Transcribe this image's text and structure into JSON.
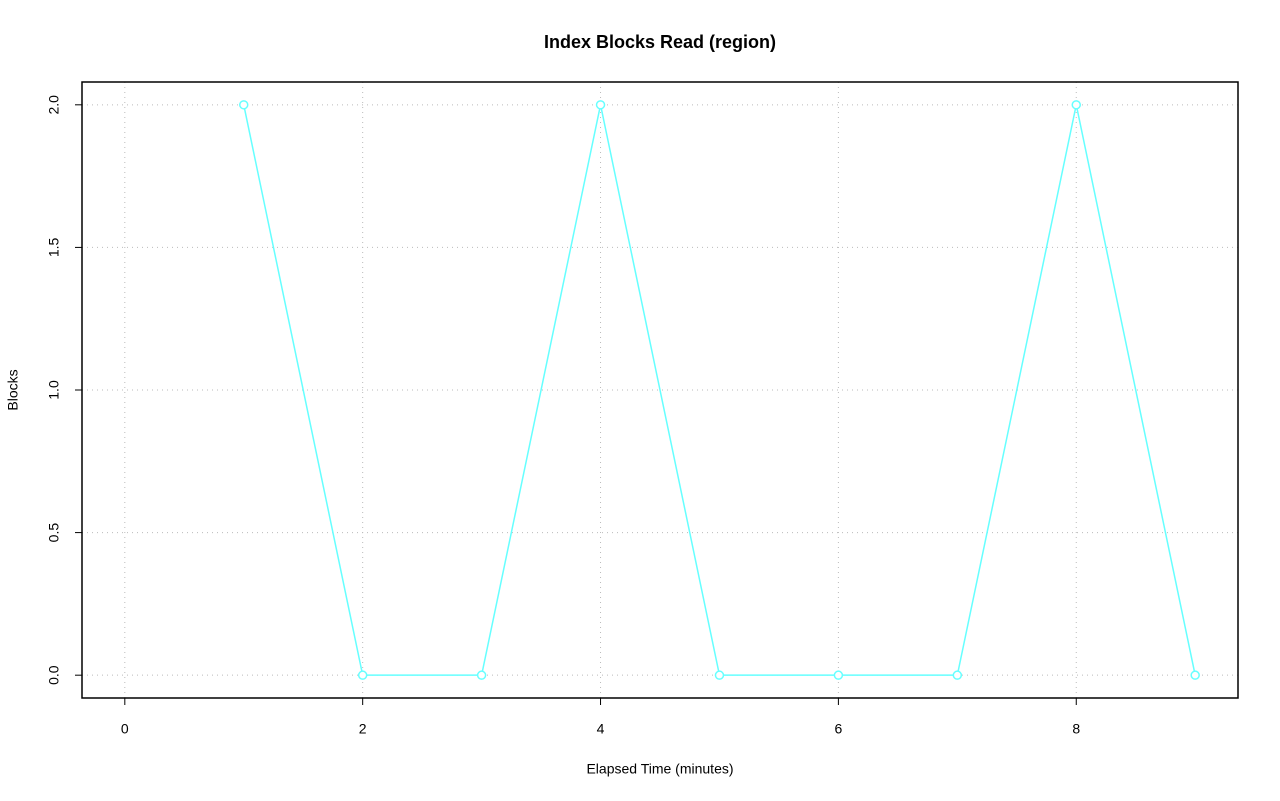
{
  "chart_data": {
    "type": "line",
    "title": "Index Blocks Read (region)",
    "x_label": "Elapsed Time (minutes)",
    "y_label": "Blocks",
    "x": [
      1,
      2,
      3,
      4,
      5,
      6,
      7,
      8,
      9
    ],
    "series": [
      {
        "name": "Index Blocks Read",
        "color": "#66ffff",
        "values": [
          2,
          0,
          0,
          2,
          0,
          0,
          0,
          2,
          0
        ]
      }
    ],
    "xlim": [
      -0.36,
      9.36
    ],
    "ylim": [
      -0.08,
      2.08
    ],
    "xticks": [
      0,
      2,
      4,
      6,
      8
    ],
    "yticks": [
      {
        "value": 0,
        "label": "0.0"
      },
      {
        "value": 0.5,
        "label": "0.5"
      },
      {
        "value": 1,
        "label": "1.0"
      },
      {
        "value": 1.5,
        "label": "1.5"
      },
      {
        "value": 2,
        "label": "2.0"
      }
    ],
    "grid": true,
    "markers": "open-circle"
  }
}
